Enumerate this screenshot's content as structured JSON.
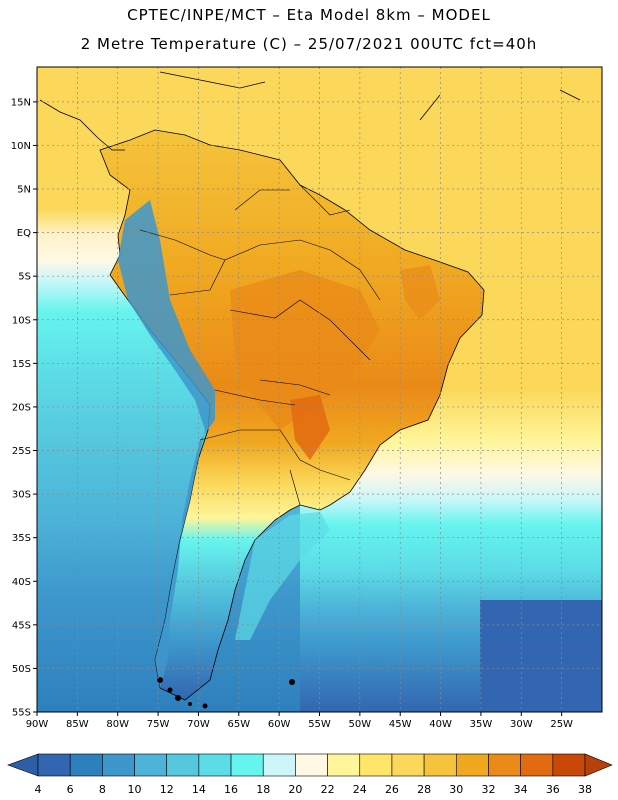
{
  "header": {
    "line1": "CPTEC/INPE/MCT –  Eta Model 8km – MODEL",
    "line2": "2 Metre Temperature (C) – 25/07/2021 00UTC fct=40h"
  },
  "map": {
    "lat_labels": [
      "15N",
      "10N",
      "5N",
      "EQ",
      "5S",
      "10S",
      "15S",
      "20S",
      "25S",
      "30S",
      "35S",
      "40S",
      "45S",
      "50S",
      "55S"
    ],
    "lon_labels": [
      "90W",
      "85W",
      "80W",
      "75W",
      "70W",
      "65W",
      "60W",
      "55W",
      "50W",
      "45W",
      "40W",
      "35W",
      "30W",
      "25W"
    ],
    "lon_range": [
      -90,
      -20
    ],
    "lat_range": [
      -55,
      19
    ],
    "grid": true
  },
  "colorbar": {
    "values": [
      "4",
      "6",
      "8",
      "10",
      "12",
      "14",
      "16",
      "18",
      "20",
      "22",
      "24",
      "26",
      "28",
      "30",
      "32",
      "34",
      "36",
      "38"
    ],
    "colors": [
      "#3366b0",
      "#2e80bd",
      "#3d97cc",
      "#4db3d8",
      "#55c7de",
      "#5cdce6",
      "#66f4ee",
      "#ccf6f8",
      "#fff8e4",
      "#fff59a",
      "#ffe56a",
      "#fbd85a",
      "#f5c43c",
      "#f0a820",
      "#ea8a18",
      "#e26a10",
      "#c84808"
    ],
    "under_color": "#2e5ea8",
    "over_color": "#b8400a"
  }
}
